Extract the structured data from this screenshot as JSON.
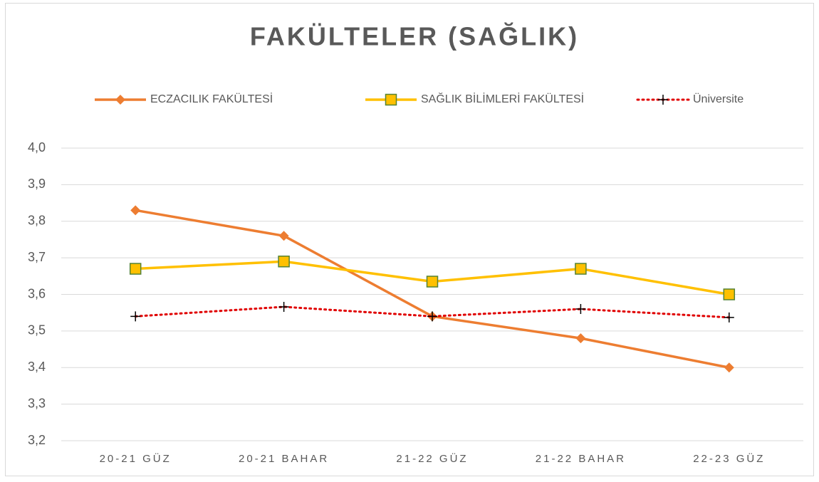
{
  "chart_data": {
    "type": "line",
    "title": "FAKÜLTELER (SAĞLIK)",
    "categories": [
      "20-21 GÜZ",
      "20-21 BAHAR",
      "21-22 GÜZ",
      "21-22 BAHAR",
      "22-23 GÜZ"
    ],
    "series": [
      {
        "name": "ECZACILIK FAKÜLTESİ",
        "color": "#ED7D31",
        "marker": "diamond",
        "dash": "solid",
        "values": [
          3.83,
          3.76,
          3.54,
          3.48,
          3.4
        ]
      },
      {
        "name": "SAĞLIK BİLİMLERİ FAKÜLTESİ",
        "color": "#FFC000",
        "marker": "square",
        "dash": "solid",
        "values": [
          3.67,
          3.69,
          3.635,
          3.67,
          3.6
        ]
      },
      {
        "name": "Üniversite",
        "color": "#E00000",
        "marker": "plus",
        "dash": "dotted",
        "values": [
          3.54,
          3.566,
          3.54,
          3.56,
          3.537
        ]
      }
    ],
    "ylim": [
      3.2,
      4.0
    ],
    "yticks": [
      {
        "value": 3.2,
        "label": "3,2"
      },
      {
        "value": 3.3,
        "label": "3,3"
      },
      {
        "value": 3.4,
        "label": "3,4"
      },
      {
        "value": 3.5,
        "label": "3,5"
      },
      {
        "value": 3.6,
        "label": "3,6"
      },
      {
        "value": 3.7,
        "label": "3,7"
      },
      {
        "value": 3.8,
        "label": "3,8"
      },
      {
        "value": 3.9,
        "label": "3,9"
      },
      {
        "value": 4.0,
        "label": "4,0"
      }
    ],
    "grid": true,
    "legend": "top"
  }
}
